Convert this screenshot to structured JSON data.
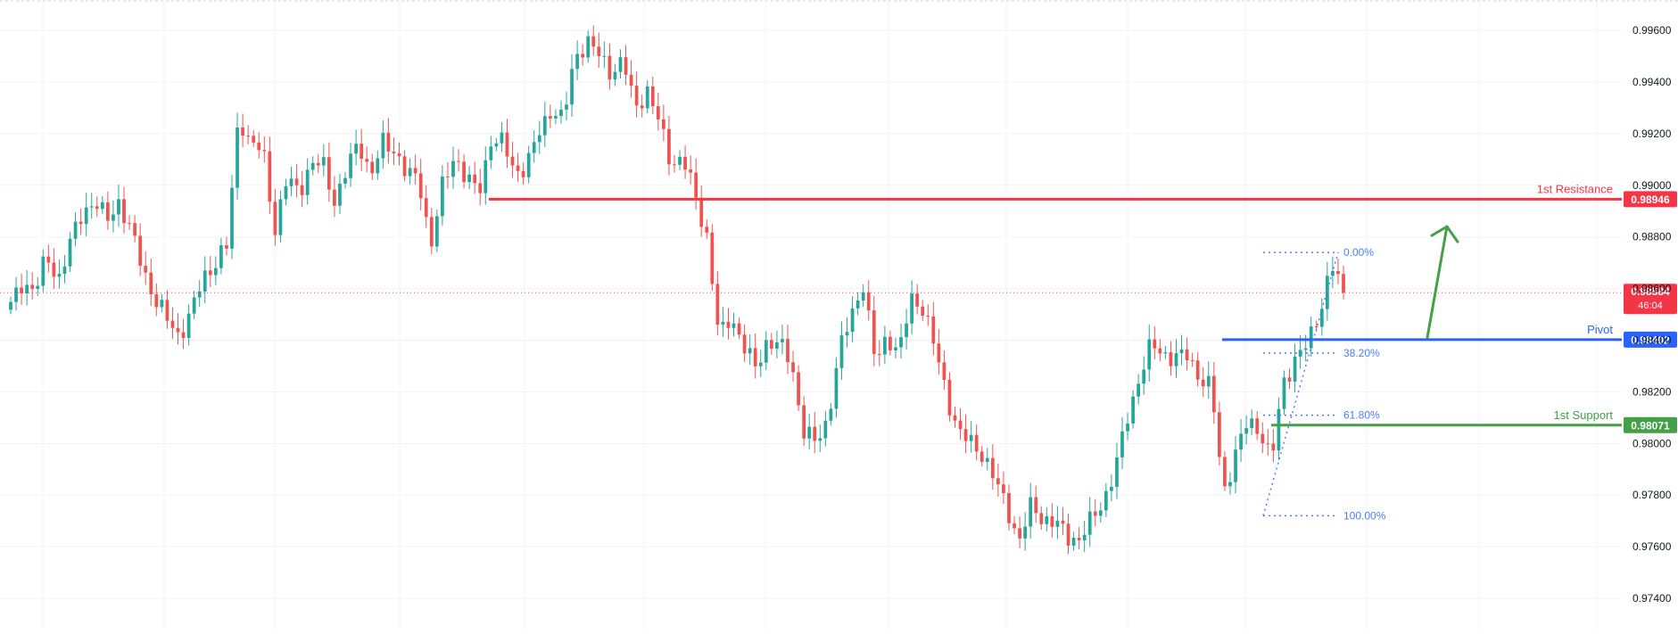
{
  "colors": {
    "bull": "#26a69a",
    "bear": "#ef5350",
    "resistance": "#f23645",
    "pivot": "#2962ff",
    "support": "#43a047",
    "fib": "#4c7dff",
    "current_price": "#f23645",
    "arrow": "#43a047"
  },
  "chart_data": {
    "type": "candlestick",
    "instrument_scale": "price",
    "ylim": [
      0.973,
      0.9969
    ],
    "y_ticks": [
      "0.97400",
      "0.97600",
      "0.97800",
      "0.98000",
      "0.98200",
      "0.98400",
      "0.98600",
      "0.98800",
      "0.99000",
      "0.99200",
      "0.99400",
      "0.99600"
    ],
    "grid": true,
    "key_points": [
      0.9853,
      0.9863,
      0.9859,
      0.9872,
      0.9864,
      0.9878,
      0.989,
      0.9894,
      0.9886,
      0.9894,
      0.9882,
      0.9868,
      0.9856,
      0.9848,
      0.9842,
      0.985,
      0.9864,
      0.987,
      0.9876,
      0.9928,
      0.9915,
      0.9914,
      0.9883,
      0.9902,
      0.9898,
      0.9908,
      0.9908,
      0.9894,
      0.9906,
      0.9917,
      0.9904,
      0.9916,
      0.9914,
      0.9904,
      0.9902,
      0.9877,
      0.99,
      0.9912,
      0.9902,
      0.9897,
      0.9918,
      0.9916,
      0.9905,
      0.9908,
      0.992,
      0.993,
      0.9925,
      0.995,
      0.9956,
      0.995,
      0.9944,
      0.9948,
      0.993,
      0.9937,
      0.9924,
      0.9909,
      0.991,
      0.9896,
      0.988,
      0.984,
      0.985,
      0.9838,
      0.9829,
      0.984,
      0.9838,
      0.9832,
      0.9805,
      0.98,
      0.9809,
      0.9835,
      0.985,
      0.9862,
      0.9831,
      0.9842,
      0.9835,
      0.9856,
      0.9853,
      0.9836,
      0.9818,
      0.9804,
      0.98,
      0.9796,
      0.9785,
      0.9775,
      0.9762,
      0.9776,
      0.9771,
      0.9769,
      0.9764,
      0.9763,
      0.977,
      0.9778,
      0.979,
      0.981,
      0.9826,
      0.9838,
      0.9835,
      0.9833,
      0.9834,
      0.9826,
      0.9821,
      0.9781,
      0.9796,
      0.9808,
      0.9806,
      0.9793,
      0.9824,
      0.9833,
      0.9838,
      0.9851,
      0.9869,
      0.98584
    ],
    "current_price": {
      "value": "0.98584",
      "countdown": "46:04"
    },
    "levels": [
      {
        "name": "1st Resistance",
        "value": 0.98946,
        "label": "0.98946",
        "color_key": "resistance"
      },
      {
        "name": "Pivot",
        "value": 0.98402,
        "label": "0.98402",
        "color_key": "pivot"
      },
      {
        "name": "1st Support",
        "value": 0.98071,
        "label": "0.98071",
        "color_key": "support"
      }
    ],
    "fibonacci": {
      "high": 0.9874,
      "low": 0.9772,
      "levels": [
        {
          "ratio": 0.0,
          "label": "0.00%"
        },
        {
          "ratio": 0.382,
          "label": "38.20%"
        },
        {
          "ratio": 0.618,
          "label": "61.80%"
        },
        {
          "ratio": 1.0,
          "label": "100.00%"
        }
      ]
    },
    "annotations": [
      {
        "type": "arrow",
        "direction": "up",
        "from_price": 0.9841,
        "to_price": 0.9884
      }
    ]
  }
}
